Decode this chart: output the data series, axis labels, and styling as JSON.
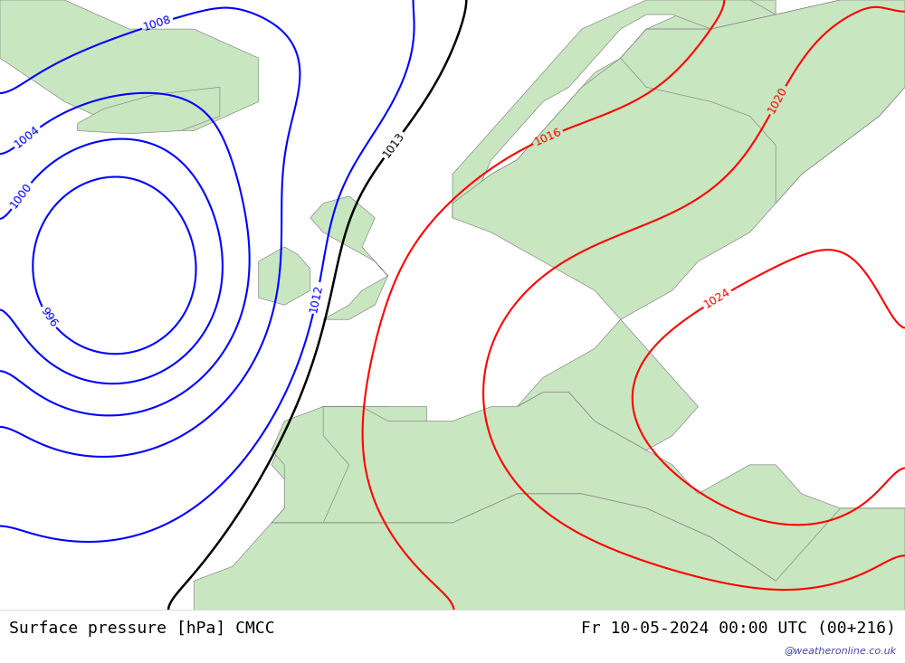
{
  "title_left": "Surface pressure [hPa] CMCC",
  "title_right": "Fr 10-05-2024 00:00 UTC (00+216)",
  "watermark": "@weatheronline.co.uk",
  "background_ocean": "#e8e8e8",
  "background_land": "#c8e6c0",
  "background_fig": "#ffffff",
  "contour_colors": {
    "996": "blue",
    "1000_low": "blue",
    "1004_low": "blue",
    "1008_low": "blue",
    "1012_low": "blue",
    "1013_black": "black",
    "1016": "red",
    "1020": "red",
    "1024": "red"
  },
  "lon_min": -30,
  "lon_max": 40,
  "lat_min": 30,
  "lat_max": 72,
  "fontsize_title": 13,
  "fontsize_labels": 9,
  "contour_linewidth": 1.5,
  "label_fontsize": 9
}
